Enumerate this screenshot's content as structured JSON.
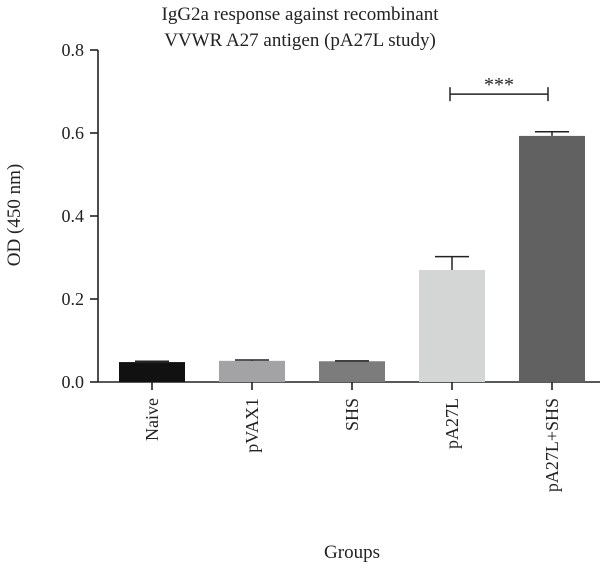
{
  "chart_data": {
    "type": "bar",
    "title": [
      "IgG2a response against recombinant",
      "VVWR A27 antigen (pA27L study)"
    ],
    "xlabel": "Groups",
    "ylabel": "OD (450 nm)",
    "ylim": [
      0,
      0.8
    ],
    "yticks": [
      "0.0",
      "0.2",
      "0.4",
      "0.6",
      "0.8"
    ],
    "ytick_values": [
      0,
      0.2,
      0.4,
      0.6,
      0.8
    ],
    "categories": [
      "Naive",
      "pVAX1",
      "SHS",
      "pA27L",
      "pA27L+SHS"
    ],
    "values": [
      0.048,
      0.051,
      0.05,
      0.27,
      0.593
    ],
    "errors": [
      0.002,
      0.002,
      0.001,
      0.032,
      0.01
    ],
    "colors": [
      "#111111",
      "#a3a3a6",
      "#7c7c7d",
      "#d4d6d5",
      "#616162"
    ],
    "significance": {
      "from": "pA27L",
      "to": "pA27L+SHS",
      "label": "***",
      "y": 0.655
    },
    "grid": false,
    "legend": "none"
  }
}
